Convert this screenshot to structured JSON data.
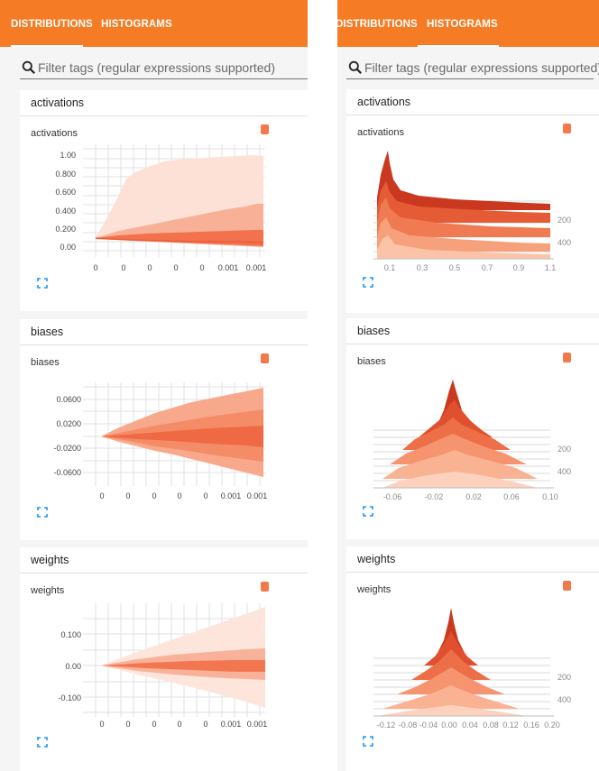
{
  "colors": {
    "header": "#f57c24",
    "band_dark": "#f2724d",
    "band_light": "#fde1d6",
    "histogram_front": "#f8a27f",
    "histogram_back": "#d8442a"
  },
  "tabs": [
    {
      "label": "DISTRIBUTIONS",
      "selected": true
    },
    {
      "label": "HISTOGRAMS",
      "selected": false
    }
  ],
  "right_tabs": [
    {
      "label": "DISTRIBUTIONS",
      "selected": false
    },
    {
      "label": "HISTOGRAMS",
      "selected": true
    }
  ],
  "filter": {
    "placeholder": "Filter tags (regular expressions supported)",
    "icon": "search-icon"
  },
  "distributions": [
    {
      "header": "activations",
      "title": "activations",
      "y_ticks": [
        "1.00",
        "0.800",
        "0.600",
        "0.400",
        "0.200",
        "0.00"
      ],
      "x_ticks": [
        "0",
        "0",
        "0",
        "0",
        "0",
        "0.001",
        "0.001"
      ]
    },
    {
      "header": "biases",
      "title": "biases",
      "y_ticks": [
        "0.0600",
        "0.0200",
        "-0.0200",
        "-0.0600"
      ],
      "x_ticks": [
        "0",
        "0",
        "0",
        "0",
        "0",
        "0.001",
        "0.001"
      ]
    },
    {
      "header": "weights",
      "title": "weights",
      "y_ticks": [
        "0.100",
        "0.00",
        "-0.100"
      ],
      "x_ticks": [
        "0",
        "0",
        "0",
        "0",
        "0",
        "0.001",
        "0.001"
      ]
    }
  ],
  "histograms": [
    {
      "header": "activations",
      "title": "activations",
      "x_ticks": [
        "0.1",
        "0.3",
        "0.5",
        "0.7",
        "0.9",
        "1.1"
      ],
      "y_ticks": [
        "200",
        "400"
      ]
    },
    {
      "header": "biases",
      "title": "biases",
      "x_ticks": [
        "-0.06",
        "-0.02",
        "0.02",
        "0.06",
        "0.10"
      ],
      "y_ticks": [
        "200",
        "400"
      ]
    },
    {
      "header": "weights",
      "title": "weights",
      "x_ticks": [
        "-0.12",
        "-0.08",
        "-0.04",
        "0.00",
        "0.04",
        "0.08",
        "0.12",
        "0.16",
        "0.20"
      ],
      "y_ticks": [
        "200",
        "400"
      ]
    }
  ]
}
